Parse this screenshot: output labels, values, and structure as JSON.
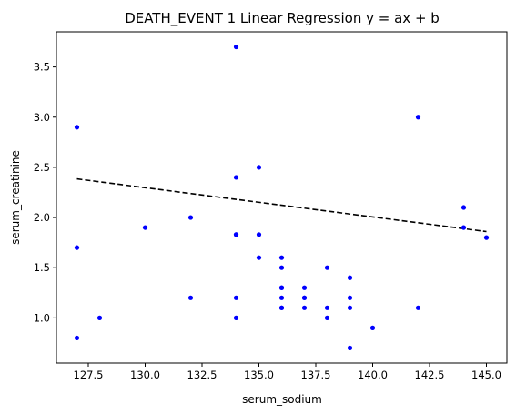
{
  "chart_data": {
    "type": "scatter",
    "title": "DEATH_EVENT 1 Linear Regression y = ax + b",
    "xlabel": "serum_sodium",
    "ylabel": "serum_creatinine",
    "xlim": [
      126.1,
      145.9
    ],
    "ylim": [
      0.55,
      3.85
    ],
    "x_ticks": [
      "127.5",
      "130.0",
      "132.5",
      "135.0",
      "137.5",
      "140.0",
      "142.5",
      "145.0"
    ],
    "x_tick_values": [
      127.5,
      130.0,
      132.5,
      135.0,
      137.5,
      140.0,
      142.5,
      145.0
    ],
    "y_ticks": [
      "1.0",
      "1.5",
      "2.0",
      "2.5",
      "3.0",
      "3.5"
    ],
    "y_tick_values": [
      1.0,
      1.5,
      2.0,
      2.5,
      3.0,
      3.5
    ],
    "grid": false,
    "point_color": "#0000ff",
    "line_color": "#000000",
    "points": [
      {
        "x": 127,
        "y": 2.9
      },
      {
        "x": 127,
        "y": 1.7
      },
      {
        "x": 127,
        "y": 0.8
      },
      {
        "x": 128,
        "y": 1.0
      },
      {
        "x": 130,
        "y": 1.9
      },
      {
        "x": 132,
        "y": 2.0
      },
      {
        "x": 132,
        "y": 1.2
      },
      {
        "x": 134,
        "y": 3.7
      },
      {
        "x": 134,
        "y": 2.4
      },
      {
        "x": 134,
        "y": 1.83
      },
      {
        "x": 134,
        "y": 1.83
      },
      {
        "x": 134,
        "y": 1.2
      },
      {
        "x": 134,
        "y": 1.0
      },
      {
        "x": 135,
        "y": 2.5
      },
      {
        "x": 135,
        "y": 1.83
      },
      {
        "x": 135,
        "y": 1.6
      },
      {
        "x": 136,
        "y": 1.6
      },
      {
        "x": 136,
        "y": 1.5
      },
      {
        "x": 136,
        "y": 1.3
      },
      {
        "x": 136,
        "y": 1.3
      },
      {
        "x": 136,
        "y": 1.2
      },
      {
        "x": 136,
        "y": 1.1
      },
      {
        "x": 136,
        "y": 1.1
      },
      {
        "x": 137,
        "y": 1.3
      },
      {
        "x": 137,
        "y": 1.2
      },
      {
        "x": 137,
        "y": 1.2
      },
      {
        "x": 137,
        "y": 1.1
      },
      {
        "x": 138,
        "y": 1.5
      },
      {
        "x": 138,
        "y": 1.1
      },
      {
        "x": 138,
        "y": 1.0
      },
      {
        "x": 139,
        "y": 1.4
      },
      {
        "x": 139,
        "y": 1.2
      },
      {
        "x": 139,
        "y": 1.1
      },
      {
        "x": 139,
        "y": 0.7
      },
      {
        "x": 140,
        "y": 0.9
      },
      {
        "x": 142,
        "y": 3.0
      },
      {
        "x": 142,
        "y": 1.1
      },
      {
        "x": 144,
        "y": 2.1
      },
      {
        "x": 144,
        "y": 1.9
      },
      {
        "x": 145,
        "y": 1.8
      }
    ],
    "regression_line": {
      "x": [
        127,
        145
      ],
      "y": [
        2.385,
        1.86
      ]
    }
  }
}
